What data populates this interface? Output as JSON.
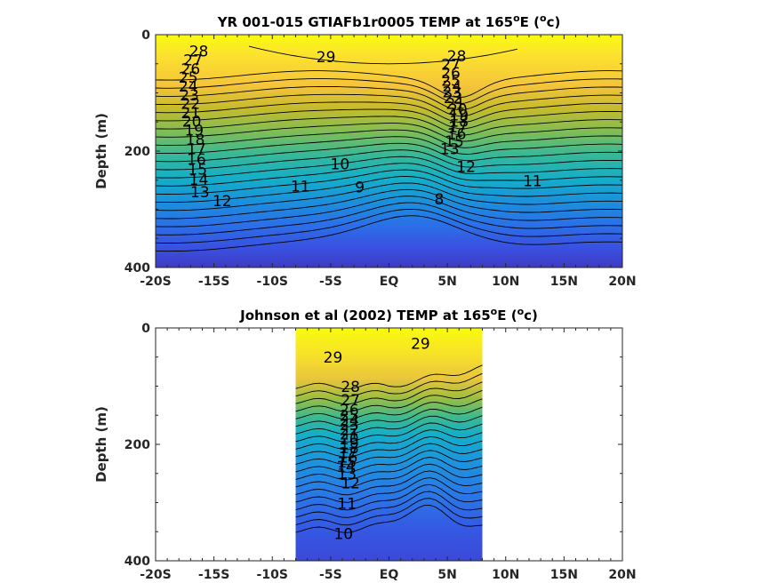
{
  "chart_data": [
    {
      "type": "contour",
      "title": "YR 001-015 GTIAFb1r0005 TEMP at 165",
      "title_superscript": "o",
      "title_suffix": "E (",
      "unit_superscript": "o",
      "unit_suffix": "c)",
      "ylabel": "Depth (m)",
      "xlim": [
        -20,
        20
      ],
      "ylim": [
        0,
        400
      ],
      "y_reversed": true,
      "x_ticks": [
        "-20S",
        "-15S",
        "-10S",
        "-5S",
        "EQ",
        "5N",
        "10N",
        "15N",
        "20N"
      ],
      "y_ticks": [
        "0",
        "200",
        "400"
      ],
      "data_lat_range": [
        -20,
        20
      ],
      "contour_labels": [
        {
          "text": "28",
          "lat": -16.3,
          "depth": 30
        },
        {
          "text": "29",
          "lat": -5.4,
          "depth": 40
        },
        {
          "text": "28",
          "lat": 5.8,
          "depth": 38
        },
        {
          "text": "27",
          "lat": -16.8,
          "depth": 45
        },
        {
          "text": "26",
          "lat": -17.0,
          "depth": 60
        },
        {
          "text": "25",
          "lat": -17.2,
          "depth": 75
        },
        {
          "text": "24",
          "lat": -17.2,
          "depth": 90
        },
        {
          "text": "23",
          "lat": -17.1,
          "depth": 105
        },
        {
          "text": "22",
          "lat": -17.0,
          "depth": 120
        },
        {
          "text": "21",
          "lat": -17.0,
          "depth": 136
        },
        {
          "text": "20",
          "lat": -16.9,
          "depth": 150
        },
        {
          "text": "19",
          "lat": -16.7,
          "depth": 166
        },
        {
          "text": "18",
          "lat": -16.6,
          "depth": 182
        },
        {
          "text": "17",
          "lat": -16.5,
          "depth": 198
        },
        {
          "text": "16",
          "lat": -16.5,
          "depth": 215
        },
        {
          "text": "15",
          "lat": -16.4,
          "depth": 233
        },
        {
          "text": "14",
          "lat": -16.3,
          "depth": 250
        },
        {
          "text": "13",
          "lat": -16.2,
          "depth": 272
        },
        {
          "text": "12",
          "lat": -14.3,
          "depth": 287
        },
        {
          "text": "11",
          "lat": -7.6,
          "depth": 262
        },
        {
          "text": "10",
          "lat": -4.2,
          "depth": 224
        },
        {
          "text": "9",
          "lat": -2.5,
          "depth": 263
        },
        {
          "text": "8",
          "lat": 4.3,
          "depth": 284
        },
        {
          "text": "27",
          "lat": 5.3,
          "depth": 53
        },
        {
          "text": "26",
          "lat": 5.3,
          "depth": 67
        },
        {
          "text": "25",
          "lat": 5.3,
          "depth": 80
        },
        {
          "text": "24",
          "lat": 5.4,
          "depth": 90
        },
        {
          "text": "23",
          "lat": 5.4,
          "depth": 100
        },
        {
          "text": "22",
          "lat": 5.5,
          "depth": 110
        },
        {
          "text": "21",
          "lat": 5.7,
          "depth": 120
        },
        {
          "text": "20",
          "lat": 5.9,
          "depth": 130
        },
        {
          "text": "19",
          "lat": 6.0,
          "depth": 140
        },
        {
          "text": "18",
          "lat": 6.0,
          "depth": 150
        },
        {
          "text": "17",
          "lat": 5.9,
          "depth": 160
        },
        {
          "text": "16",
          "lat": 5.8,
          "depth": 172
        },
        {
          "text": "15",
          "lat": 5.6,
          "depth": 185
        },
        {
          "text": "13",
          "lat": 5.2,
          "depth": 198
        },
        {
          "text": "12",
          "lat": 6.6,
          "depth": 228
        },
        {
          "text": "11",
          "lat": 12.3,
          "depth": 253
        }
      ]
    },
    {
      "type": "contour",
      "title": "Johnson et al (2002) TEMP at 165",
      "title_superscript": "o",
      "title_suffix": "E (",
      "unit_superscript": "o",
      "unit_suffix": "c)",
      "ylabel": "Depth (m)",
      "xlim": [
        -20,
        20
      ],
      "ylim": [
        0,
        400
      ],
      "y_reversed": true,
      "x_ticks": [
        "-20S",
        "-15S",
        "-10S",
        "-5S",
        "EQ",
        "5N",
        "10N",
        "15N",
        "20N"
      ],
      "y_ticks": [
        "0",
        "200",
        "400"
      ],
      "data_lat_range": [
        -8,
        8
      ],
      "contour_labels": [
        {
          "text": "29",
          "lat": -4.8,
          "depth": 52
        },
        {
          "text": "29",
          "lat": 2.7,
          "depth": 28
        },
        {
          "text": "28",
          "lat": -3.3,
          "depth": 102
        },
        {
          "text": "27",
          "lat": -3.3,
          "depth": 125
        },
        {
          "text": "26",
          "lat": -3.4,
          "depth": 142
        },
        {
          "text": "25",
          "lat": -3.4,
          "depth": 152
        },
        {
          "text": "24",
          "lat": -3.4,
          "depth": 160
        },
        {
          "text": "23",
          "lat": -3.4,
          "depth": 168
        },
        {
          "text": "22",
          "lat": -3.4,
          "depth": 176
        },
        {
          "text": "21",
          "lat": -3.4,
          "depth": 184
        },
        {
          "text": "20",
          "lat": -3.4,
          "depth": 192
        },
        {
          "text": "19",
          "lat": -3.4,
          "depth": 200
        },
        {
          "text": "18",
          "lat": -3.4,
          "depth": 208
        },
        {
          "text": "17",
          "lat": -3.5,
          "depth": 216
        },
        {
          "text": "16",
          "lat": -3.5,
          "depth": 224
        },
        {
          "text": "15",
          "lat": -3.6,
          "depth": 232
        },
        {
          "text": "14",
          "lat": -3.7,
          "depth": 240
        },
        {
          "text": "13",
          "lat": -3.6,
          "depth": 252
        },
        {
          "text": "12",
          "lat": -3.3,
          "depth": 268
        },
        {
          "text": "11",
          "lat": -3.6,
          "depth": 303
        },
        {
          "text": "10",
          "lat": -3.9,
          "depth": 355
        }
      ]
    }
  ]
}
